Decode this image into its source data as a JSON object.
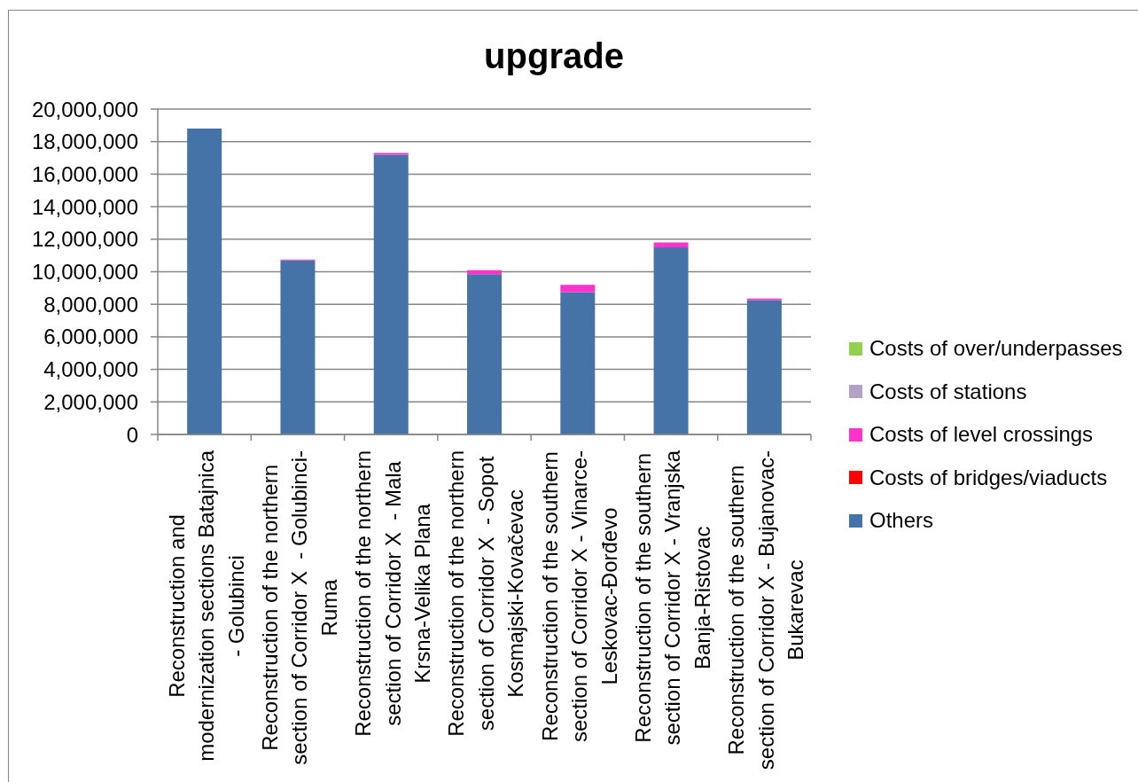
{
  "chart_data": {
    "type": "bar",
    "title": "upgrade",
    "categories": [
      "Reconstruction and modernization sections Batajnica - Golubinci",
      "Reconstruction of the northern section of Corridor X  - Golubinci-Ruma",
      "Reconstruction of the northern section of Corridor X  - Mala Krsna-Velika Plana",
      "Reconstruction of the northern section of Corridor X  - Sopot Kosmajski-Kovačevac",
      "Reconstruction of the southern section of Corridor X - Vinarce-Leskovac-Đorđevo",
      "Reconstruction of the southern section of Corridor X - Vranjska Banja-Ristovac",
      "Reconstruction of the southern section of Corridor X - Bujanovac-Bukarevac"
    ],
    "series": [
      {
        "name": "Others",
        "color": "#4572a7",
        "values": [
          18800000,
          10700000,
          17200000,
          9850000,
          8750000,
          11500000,
          8250000
        ]
      },
      {
        "name": "Costs of bridges/viaducts",
        "color": "#ff0000",
        "values": [
          0,
          0,
          0,
          0,
          0,
          0,
          0
        ]
      },
      {
        "name": "Costs of level crossings",
        "color": "#ff33cc",
        "values": [
          0,
          50000,
          100000,
          250000,
          450000,
          300000,
          100000
        ]
      },
      {
        "name": "Costs of stations",
        "color": "#b3a2c7",
        "values": [
          0,
          0,
          0,
          0,
          0,
          0,
          0
        ]
      },
      {
        "name": "Costs of over/underpasses",
        "color": "#92d050",
        "values": [
          0,
          0,
          0,
          0,
          0,
          0,
          0
        ]
      }
    ],
    "stacked": true,
    "ylim": [
      0,
      20000000
    ],
    "yticks": [
      0,
      {
        "value": 2000000,
        "label": "2,000,000"
      },
      {
        "value": 4000000,
        "label": "4,000,000"
      },
      {
        "value": 6000000,
        "label": "6,000,000"
      },
      {
        "value": 8000000,
        "label": "8,000,000"
      },
      {
        "value": 10000000,
        "label": "10,000,000"
      },
      {
        "value": 12000000,
        "label": "12,000,000"
      },
      {
        "value": 14000000,
        "label": "14,000,000"
      },
      {
        "value": 16000000,
        "label": "16,000,000"
      },
      {
        "value": 18000000,
        "label": "18,000,000"
      },
      {
        "value": 20000000,
        "label": "20,000,000"
      }
    ],
    "grid": "y",
    "legend": "right"
  }
}
